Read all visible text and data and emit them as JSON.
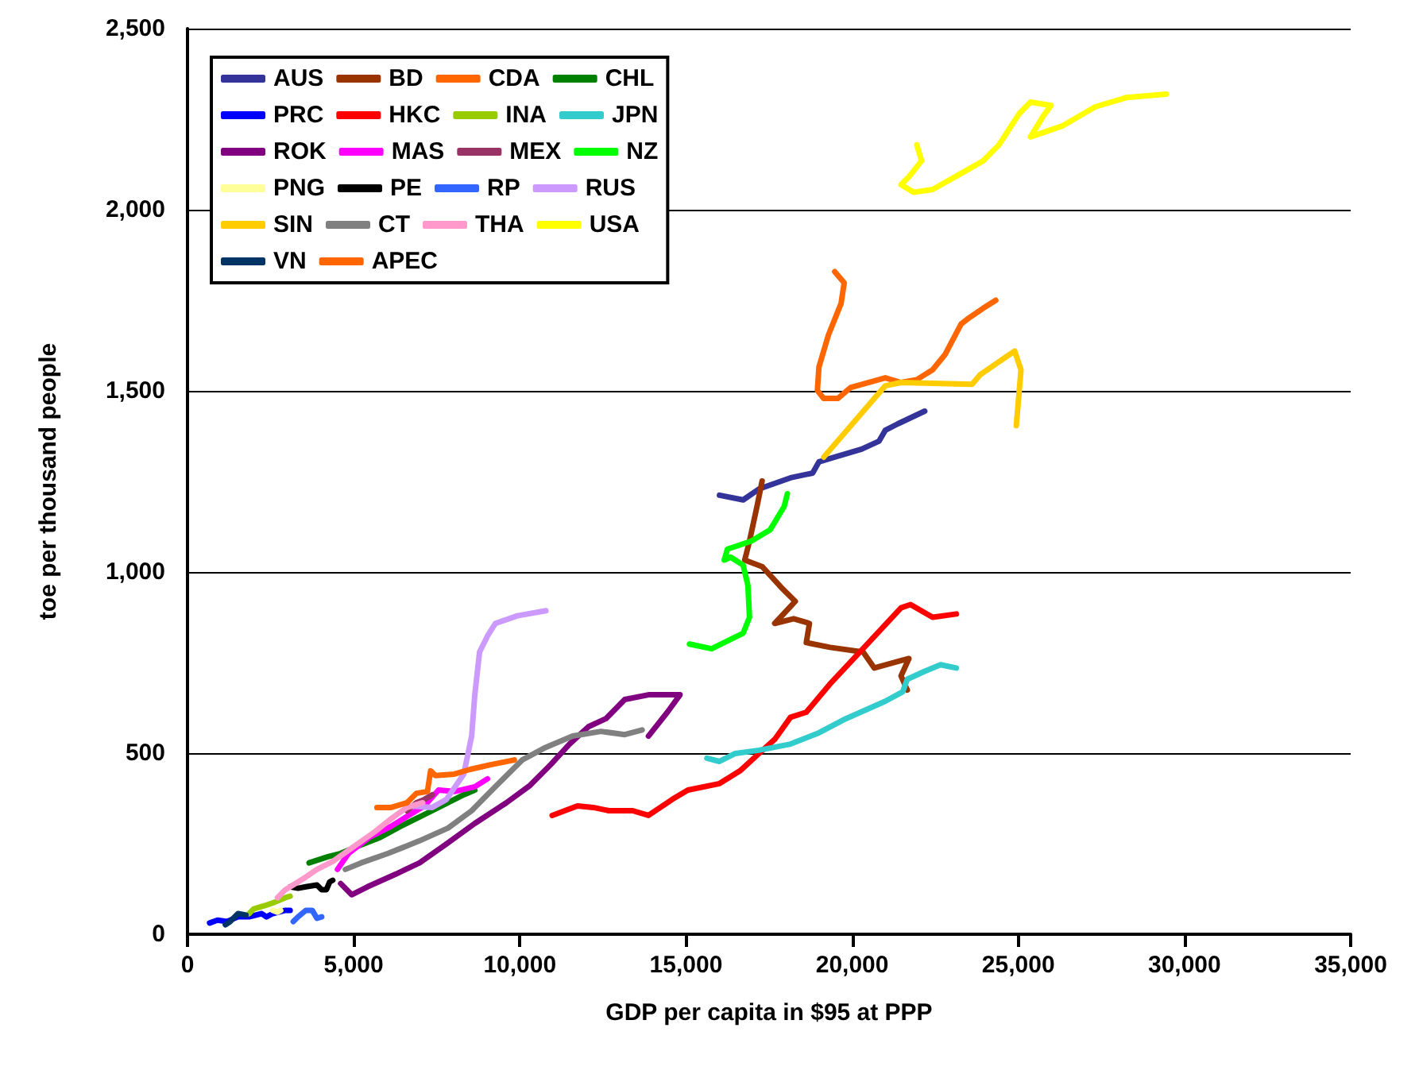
{
  "chart_data": {
    "type": "line",
    "xlabel": "GDP per capita in $95 at PPP",
    "ylabel": "toe per thousand people",
    "xlim": [
      0,
      35000
    ],
    "xticks": [
      {
        "value": 0,
        "label": "0"
      },
      {
        "value": 5000,
        "label": "5,000"
      },
      {
        "value": 10000,
        "label": "10,000"
      },
      {
        "value": 15000,
        "label": "15,000"
      },
      {
        "value": 20000,
        "label": "20,000"
      },
      {
        "value": 25000,
        "label": "25,000"
      },
      {
        "value": 30000,
        "label": "30,000"
      },
      {
        "value": 35000,
        "label": "35,000"
      }
    ],
    "ylim": [
      0,
      2500
    ],
    "yticks": [
      {
        "value": 0,
        "label": "0"
      },
      {
        "value": 500,
        "label": "500"
      },
      {
        "value": 1000,
        "label": "1,000"
      },
      {
        "value": 1500,
        "label": "1,500"
      },
      {
        "value": 2000,
        "label": "2,000"
      },
      {
        "value": 2500,
        "label": "2,500"
      }
    ],
    "grid": "y",
    "legend": "top left",
    "marker": "none",
    "line_style": "solid",
    "series": [
      {
        "name": "AUS",
        "color": "#333399",
        "x": [
          16008,
          16720,
          17195,
          18145,
          18810,
          19000,
          19475,
          20283,
          20805,
          20995,
          21375,
          22183
        ],
        "values": [
          1212,
          1199,
          1229,
          1260,
          1273,
          1304,
          1317,
          1339,
          1361,
          1391,
          1409,
          1444
        ]
      },
      {
        "name": "BD",
        "color": "#993300",
        "x": [
          17290,
          17148,
          16910,
          16768,
          17290,
          17860,
          18288,
          17670,
          18240,
          18715,
          18620,
          19333,
          20330,
          20663,
          21375,
          21708,
          21470,
          21660
        ],
        "values": [
          1251,
          1186,
          1085,
          1033,
          1015,
          958,
          919,
          858,
          871,
          858,
          805,
          792,
          779,
          735,
          753,
          761,
          713,
          674
        ]
      },
      {
        "name": "CDA",
        "color": "#ff6600",
        "x": [
          19475,
          19760,
          19665,
          19285,
          19000,
          18953,
          19143,
          19570,
          19950,
          20995,
          21470,
          21945,
          22420,
          22800,
          23275,
          23465,
          23940,
          24320
        ],
        "values": [
          1829,
          1798,
          1741,
          1654,
          1566,
          1501,
          1479,
          1479,
          1509,
          1536,
          1523,
          1531,
          1558,
          1601,
          1684,
          1698,
          1728,
          1750
        ]
      },
      {
        "name": "CHL",
        "color": "#008000",
        "x": [
          3658,
          4228,
          4608,
          5178,
          5795,
          6413,
          7078,
          7838,
          8313,
          8645
        ],
        "values": [
          197,
          214,
          223,
          245,
          267,
          298,
          328,
          363,
          385,
          398
        ]
      },
      {
        "name": "PRC",
        "color": "#0000ff",
        "x": [
          665,
          903,
          1188,
          1520,
          1853,
          2233,
          2375,
          2565,
          2945,
          3088
        ],
        "values": [
          31,
          39,
          35,
          48,
          48,
          57,
          48,
          57,
          66,
          66
        ]
      },
      {
        "name": "HKC",
        "color": "#ff0000",
        "x": [
          10973,
          11733,
          12208,
          12683,
          13395,
          13870,
          14583,
          15058,
          16008,
          16625,
          17195,
          17670,
          18145,
          18620,
          19333,
          20140,
          20758,
          21470,
          21755,
          22420,
          23133
        ],
        "values": [
          328,
          354,
          350,
          341,
          341,
          328,
          372,
          398,
          416,
          451,
          499,
          538,
          599,
          613,
          691,
          770,
          831,
          901,
          910,
          875,
          884
        ]
      },
      {
        "name": "INA",
        "color": "#99cc00",
        "x": [
          1853,
          1995,
          2328,
          2613,
          2945,
          3088
        ],
        "values": [
          57,
          70,
          79,
          88,
          101,
          105
        ]
      },
      {
        "name": "JPN",
        "color": "#33cccc",
        "x": [
          15628,
          16008,
          16483,
          17195,
          18145,
          19000,
          19808,
          20995,
          21518,
          21660,
          22183,
          22658,
          23133
        ],
        "values": [
          486,
          477,
          499,
          508,
          525,
          556,
          595,
          643,
          669,
          704,
          726,
          744,
          735
        ]
      },
      {
        "name": "ROK",
        "color": "#800080",
        "x": [
          4608,
          4940,
          5415,
          6270,
          6983,
          7790,
          8645,
          9595,
          10308,
          10925,
          11495,
          12065,
          12588,
          13158,
          13870,
          14820,
          14440,
          13870
        ],
        "values": [
          140,
          109,
          131,
          166,
          197,
          249,
          306,
          363,
          411,
          468,
          525,
          573,
          595,
          648,
          661,
          661,
          613,
          547
        ]
      },
      {
        "name": "MAS",
        "color": "#ff00ff",
        "x": [
          4513,
          4845,
          5463,
          6128,
          6650,
          7125,
          7553,
          8028,
          8645,
          9025
        ],
        "values": [
          179,
          223,
          267,
          298,
          328,
          354,
          398,
          394,
          407,
          429
        ]
      },
      {
        "name": "MEX",
        "color": "#993366",
        "x": [
          6603,
          6888,
          7125,
          7363
        ],
        "values": [
          341,
          363,
          372,
          385
        ]
      },
      {
        "name": "NZ",
        "color": "#00ff00",
        "x": [
          15105,
          15770,
          16340,
          16720,
          16910,
          16863,
          16720,
          16340,
          16150,
          16245,
          16958,
          17528,
          17955,
          18050
        ],
        "values": [
          801,
          788,
          814,
          831,
          875,
          963,
          1019,
          1041,
          1033,
          1063,
          1085,
          1116,
          1181,
          1216
        ]
      },
      {
        "name": "PNG",
        "color": "#ffff99",
        "x": [
          2565,
          2708,
          2803
        ],
        "values": [
          66,
          61,
          66
        ]
      },
      {
        "name": "PE",
        "color": "#000000",
        "x": [
          3088,
          3325,
          3563,
          3895,
          4038,
          4180,
          4275,
          4370
        ],
        "values": [
          131,
          127,
          131,
          136,
          123,
          123,
          144,
          149
        ]
      },
      {
        "name": "RP",
        "color": "#3366ff",
        "x": [
          3183,
          3325,
          3563,
          3753,
          3895,
          4038
        ],
        "values": [
          35,
          48,
          66,
          66,
          44,
          48
        ]
      },
      {
        "name": "RUS",
        "color": "#cc99ff",
        "x": [
          6745,
          7363,
          7790,
          8313,
          8550,
          8645,
          8788,
          9025,
          9263,
          9928,
          10783
        ],
        "values": [
          354,
          350,
          372,
          442,
          547,
          661,
          779,
          823,
          858,
          879,
          893
        ]
      },
      {
        "name": "SIN",
        "color": "#ffcc00",
        "x": [
          19143,
          20045,
          20995,
          21470,
          23608,
          23845,
          24890,
          25080,
          24938
        ],
        "values": [
          1317,
          1413,
          1514,
          1523,
          1518,
          1544,
          1610,
          1558,
          1404
        ]
      },
      {
        "name": "CT",
        "color": "#808080",
        "x": [
          4750,
          5225,
          6033,
          6983,
          7838,
          8550,
          9215,
          10070,
          10783,
          11590,
          12445,
          13158,
          13680
        ],
        "values": [
          179,
          197,
          223,
          258,
          293,
          341,
          403,
          481,
          516,
          547,
          560,
          551,
          564
        ]
      },
      {
        "name": "THA",
        "color": "#ff99cc",
        "x": [
          2708,
          2945,
          3563,
          3895,
          4370,
          4988,
          5653,
          6128,
          6603,
          7078
        ],
        "values": [
          101,
          123,
          158,
          179,
          201,
          241,
          284,
          319,
          350,
          363
        ]
      },
      {
        "name": "USA",
        "color": "#ffff00",
        "x": [
          21945,
          22088,
          21708,
          21470,
          21850,
          22420,
          23275,
          23940,
          24415,
          25033,
          25365,
          25983,
          25745,
          25365,
          26315,
          27313,
          28263,
          29450
        ],
        "values": [
          2179,
          2135,
          2091,
          2069,
          2048,
          2056,
          2100,
          2135,
          2179,
          2266,
          2297,
          2288,
          2258,
          2201,
          2231,
          2284,
          2310,
          2319
        ]
      },
      {
        "name": "VN",
        "color": "#003366",
        "x": [
          1140,
          1283,
          1520,
          1758
        ],
        "values": [
          26,
          35,
          57,
          53
        ]
      },
      {
        "name": "APEC",
        "color": "#ff6600",
        "x": [
          5700,
          6128,
          6603,
          6888,
          7220,
          7315,
          7458,
          8028,
          8503,
          9120,
          9833
        ],
        "values": [
          350,
          350,
          363,
          389,
          394,
          451,
          438,
          442,
          455,
          468,
          481
        ]
      }
    ]
  }
}
